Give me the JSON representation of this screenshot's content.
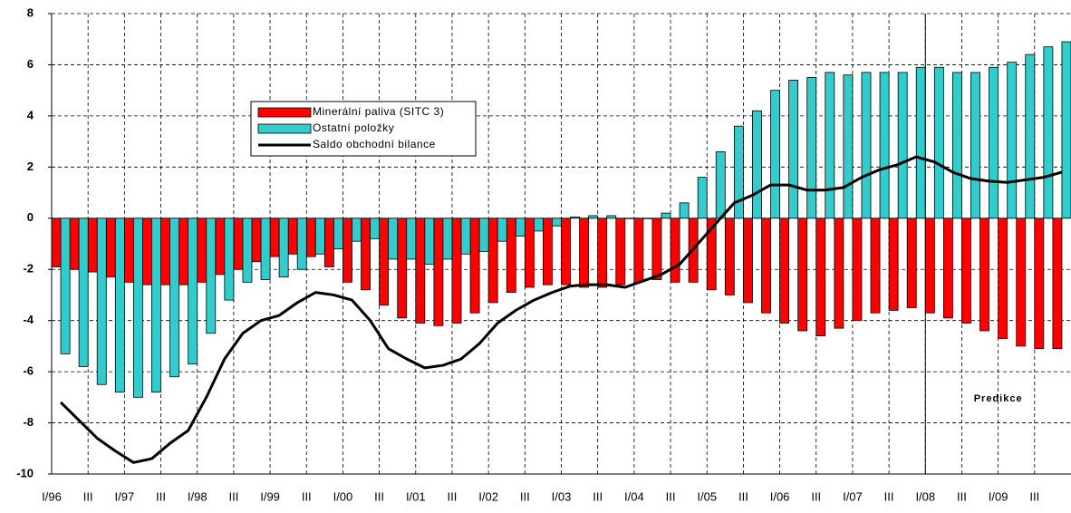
{
  "chart_data": {
    "type": "bar",
    "categories": [
      "I/96",
      null,
      "III",
      null,
      "I/97",
      null,
      "III",
      null,
      "I/98",
      null,
      "III",
      null,
      "I/99",
      null,
      "III",
      null,
      "I/00",
      null,
      "III",
      null,
      "I/01",
      null,
      "III",
      null,
      "I/02",
      null,
      "III",
      null,
      "I/03",
      null,
      "III",
      null,
      "I/04",
      null,
      "III",
      null,
      "I/05",
      null,
      "III",
      null,
      "I/06",
      null,
      "III",
      null,
      "I/07",
      null,
      "III",
      null,
      "I/08",
      null,
      "III",
      null,
      "I/09",
      null,
      "III",
      null
    ],
    "series": [
      {
        "name": "Minerální paliva (SITC 3)",
        "type": "bar",
        "color": "#ff0000",
        "values": [
          -1.9,
          -2.0,
          -2.1,
          -2.3,
          -2.5,
          -2.6,
          -2.6,
          -2.6,
          -2.5,
          -2.2,
          -2.0,
          -1.7,
          -1.5,
          -1.4,
          -1.5,
          -1.9,
          -2.5,
          -2.8,
          -3.4,
          -3.9,
          -4.1,
          -4.2,
          -4.1,
          -3.7,
          -3.3,
          -2.9,
          -2.7,
          -2.6,
          -2.6,
          -2.7,
          -2.7,
          -2.6,
          -2.5,
          -2.4,
          -2.5,
          -2.5,
          -2.8,
          -3.0,
          -3.3,
          -3.7,
          -4.1,
          -4.4,
          -4.6,
          -4.3,
          -4.0,
          -3.7,
          -3.6,
          -3.5,
          -3.7,
          -3.9,
          -4.1,
          -4.4,
          -4.7,
          -5.0,
          -5.1,
          -5.1
        ]
      },
      {
        "name": "Ostatní položky",
        "type": "bar",
        "color": "#33cccc",
        "values": [
          -5.3,
          -5.8,
          -6.5,
          -6.8,
          -7.0,
          -6.8,
          -6.2,
          -5.7,
          -4.5,
          -3.2,
          -2.5,
          -2.4,
          -2.3,
          -2.0,
          -1.4,
          -1.2,
          -0.9,
          -0.8,
          -1.6,
          -1.6,
          -1.8,
          -1.6,
          -1.4,
          -1.3,
          -0.9,
          -0.7,
          -0.5,
          -0.3,
          0.05,
          0.1,
          0.1,
          0.0,
          0.0,
          0.2,
          0.6,
          1.6,
          2.6,
          3.6,
          4.2,
          5.0,
          5.4,
          5.5,
          5.7,
          5.6,
          5.7,
          5.7,
          5.7,
          5.9,
          5.9,
          5.7,
          5.7,
          5.9,
          6.1,
          6.4,
          6.7,
          6.9
        ]
      },
      {
        "name": "Saldo obchodní bilance",
        "type": "line",
        "color": "#000000",
        "values": [
          -7.2,
          -7.9,
          -8.6,
          -9.1,
          -9.55,
          -9.4,
          -8.8,
          -8.3,
          -7.0,
          -5.5,
          -4.5,
          -4.0,
          -3.8,
          -3.3,
          -2.9,
          -3.0,
          -3.2,
          -4.0,
          -5.1,
          -5.5,
          -5.85,
          -5.75,
          -5.5,
          -4.9,
          -4.1,
          -3.6,
          -3.2,
          -2.9,
          -2.65,
          -2.6,
          -2.6,
          -2.7,
          -2.45,
          -2.2,
          -1.8,
          -1.0,
          -0.2,
          0.6,
          0.9,
          1.3,
          1.3,
          1.1,
          1.1,
          1.2,
          1.6,
          1.9,
          2.1,
          2.4,
          2.2,
          1.8,
          1.55,
          1.45,
          1.4,
          1.5,
          1.6,
          1.8
        ]
      }
    ],
    "ylim": [
      -10,
      8
    ],
    "yticks": [
      -10,
      -8,
      -6,
      -4,
      -2,
      0,
      2,
      4,
      6,
      8
    ],
    "grid": true,
    "annotations": [
      {
        "text": "Predikce",
        "x": "I/08"
      }
    ]
  }
}
